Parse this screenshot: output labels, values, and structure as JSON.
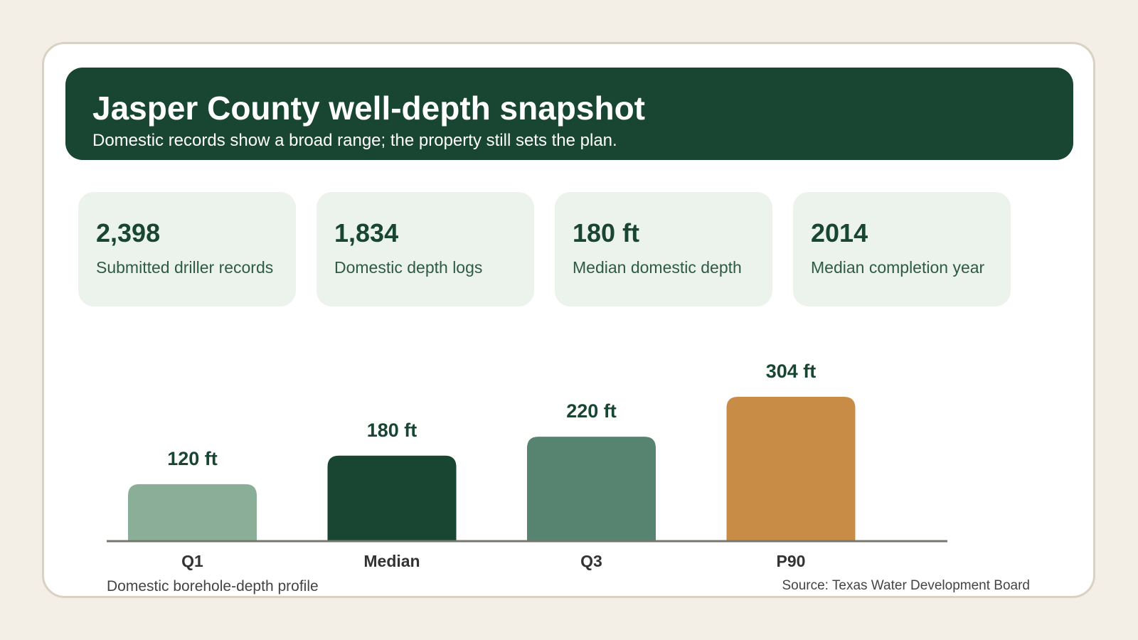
{
  "header": {
    "title": "Jasper County well-depth snapshot",
    "subtitle": "Domestic records show a broad range; the property still sets the plan."
  },
  "stats": [
    {
      "value": "2,398",
      "label": "Submitted driller records"
    },
    {
      "value": "1,834",
      "label": "Domestic depth logs"
    },
    {
      "value": "180 ft",
      "label": "Median domestic depth"
    },
    {
      "value": "2014",
      "label": "Median completion year"
    }
  ],
  "chart_data": {
    "type": "bar",
    "categories": [
      "Q1",
      "Median",
      "Q3",
      "P90"
    ],
    "values": [
      120,
      180,
      220,
      304
    ],
    "value_labels": [
      "120 ft",
      "180 ft",
      "220 ft",
      "304 ft"
    ],
    "unit": "ft",
    "colors": [
      "#8aae97",
      "#184632",
      "#578470",
      "#c98c47"
    ],
    "grid": false,
    "ylim": [
      0,
      304
    ]
  },
  "footer": {
    "caption": "Domestic borehole-depth profile",
    "source": "Source: Texas Water Development Board"
  }
}
